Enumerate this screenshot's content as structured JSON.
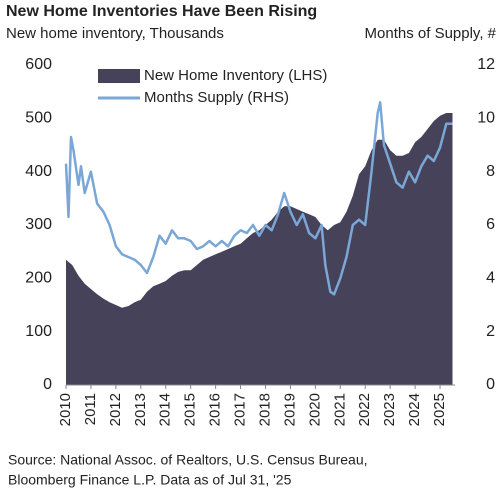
{
  "chart_data": {
    "type": "area-line",
    "title": "New Home Inventories Have Been Rising",
    "ylabel": "New home inventory, Thousands",
    "y2label": "Months of Supply, #",
    "source": [
      "Source: National Assoc. of Realtors, U.S. Census Bureau,",
      "Bloomberg Finance L.P. Data as of Jul  31, '25"
    ],
    "xlim": [
      2010,
      2025.6
    ],
    "xticks": [
      2010,
      2011,
      2012,
      2013,
      2014,
      2015,
      2016,
      2017,
      2018,
      2019,
      2020,
      2021,
      2022,
      2023,
      2024,
      2025
    ],
    "ylim": [
      0,
      600
    ],
    "yticks": [
      0,
      100,
      200,
      300,
      400,
      500,
      600
    ],
    "y2lim": [
      0,
      12
    ],
    "y2ticks": [
      0,
      2,
      4,
      6,
      8,
      10,
      12
    ],
    "legend": "upper left",
    "series": [
      {
        "name": "New Home Inventory (LHS)",
        "kind": "area",
        "color": "#45425a",
        "x": [
          2010,
          2010.25,
          2010.5,
          2010.75,
          2011,
          2011.25,
          2011.5,
          2011.75,
          2012,
          2012.25,
          2012.5,
          2012.75,
          2013,
          2013.25,
          2013.5,
          2013.75,
          2014,
          2014.25,
          2014.5,
          2014.75,
          2015,
          2015.25,
          2015.5,
          2015.75,
          2016,
          2016.25,
          2016.5,
          2016.75,
          2017,
          2017.25,
          2017.5,
          2017.75,
          2018,
          2018.25,
          2018.5,
          2018.75,
          2019,
          2019.25,
          2019.5,
          2019.75,
          2020,
          2020.25,
          2020.5,
          2020.75,
          2021,
          2021.25,
          2021.5,
          2021.75,
          2022,
          2022.25,
          2022.5,
          2022.75,
          2023,
          2023.25,
          2023.5,
          2023.75,
          2024,
          2024.25,
          2024.5,
          2024.75,
          2025,
          2025.25,
          2025.5
        ],
        "values": [
          235,
          225,
          205,
          190,
          180,
          170,
          162,
          155,
          150,
          145,
          148,
          155,
          160,
          175,
          185,
          190,
          195,
          205,
          212,
          215,
          215,
          225,
          235,
          240,
          245,
          250,
          255,
          260,
          265,
          275,
          285,
          290,
          300,
          310,
          325,
          335,
          335,
          330,
          325,
          320,
          315,
          300,
          290,
          300,
          305,
          325,
          355,
          395,
          410,
          440,
          460,
          460,
          440,
          430,
          430,
          435,
          455,
          465,
          480,
          495,
          505,
          510,
          510
        ]
      },
      {
        "name": "Months Supply (RHS)",
        "kind": "line",
        "axis": "y2",
        "color": "#7ba7d6",
        "x": [
          2010,
          2010.1,
          2010.2,
          2010.3,
          2010.5,
          2010.6,
          2010.75,
          2011,
          2011.25,
          2011.5,
          2011.75,
          2012,
          2012.25,
          2012.5,
          2012.75,
          2013,
          2013.25,
          2013.5,
          2013.75,
          2014,
          2014.25,
          2014.5,
          2014.75,
          2015,
          2015.25,
          2015.5,
          2015.75,
          2016,
          2016.25,
          2016.5,
          2016.75,
          2017,
          2017.25,
          2017.5,
          2017.75,
          2018,
          2018.25,
          2018.5,
          2018.75,
          2019,
          2019.25,
          2019.5,
          2019.75,
          2020,
          2020.25,
          2020.4,
          2020.6,
          2020.75,
          2021,
          2021.25,
          2021.5,
          2021.75,
          2022,
          2022.25,
          2022.5,
          2022.6,
          2022.75,
          2023,
          2023.25,
          2023.5,
          2023.75,
          2024,
          2024.25,
          2024.5,
          2024.75,
          2025,
          2025.25,
          2025.5
        ],
        "values": [
          8.3,
          6.3,
          9.3,
          8.8,
          7.5,
          8.2,
          7.2,
          8.0,
          6.8,
          6.5,
          6.0,
          5.2,
          4.9,
          4.8,
          4.7,
          4.5,
          4.2,
          4.8,
          5.6,
          5.3,
          5.8,
          5.5,
          5.5,
          5.4,
          5.1,
          5.2,
          5.4,
          5.2,
          5.4,
          5.2,
          5.6,
          5.8,
          5.7,
          6.0,
          5.6,
          6.0,
          5.8,
          6.4,
          7.2,
          6.5,
          6.0,
          6.4,
          5.7,
          5.5,
          6.0,
          4.5,
          3.5,
          3.4,
          4.0,
          4.8,
          6.0,
          6.2,
          6.0,
          8.0,
          10.2,
          10.6,
          9.0,
          8.3,
          7.6,
          7.4,
          8.0,
          7.6,
          8.2,
          8.6,
          8.4,
          8.9,
          9.8,
          9.8
        ]
      }
    ]
  }
}
